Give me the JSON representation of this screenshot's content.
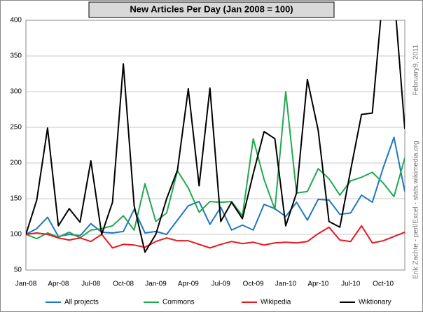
{
  "chart_data": {
    "type": "line",
    "title": "New Articles Per Day  (Jan 2008 = 100)",
    "annotations": [
      "February9, 2011",
      "Erik Zachte  -  perl/Excel  -  stats.wikimedia.org"
    ],
    "categories": [
      "Jan-08",
      null,
      null,
      "Apr-08",
      null,
      null,
      "Jul-08",
      null,
      null,
      "Oct-08",
      null,
      null,
      "Jan-09",
      null,
      null,
      "Apr-09",
      null,
      null,
      "Jul-09",
      null,
      null,
      "Oct-09",
      null,
      null,
      "Jan-10",
      null,
      null,
      "Apr-10",
      null,
      null,
      "Jul-10",
      null,
      null,
      "Oct-10",
      null,
      null
    ],
    "ylim": [
      50,
      400
    ],
    "yticks": [
      50,
      100,
      150,
      200,
      250,
      300,
      350,
      400
    ],
    "grid": true,
    "legend": "bottom",
    "series": [
      {
        "name": "All projects",
        "color": "#1f77c0",
        "values": [
          100,
          108,
          124,
          97,
          100,
          98,
          115,
          103,
          102,
          104,
          135,
          102,
          104,
          100,
          120,
          140,
          146,
          114,
          138,
          106,
          113,
          106,
          142,
          136,
          125,
          145,
          120,
          149,
          148,
          128,
          130,
          155,
          145,
          193,
          236,
          160
        ]
      },
      {
        "name": "Commons",
        "color": "#1faa50",
        "values": [
          100,
          94,
          102,
          96,
          103,
          95,
          106,
          108,
          112,
          126,
          106,
          171,
          118,
          130,
          189,
          165,
          131,
          146,
          145,
          146,
          126,
          234,
          177,
          135,
          300,
          158,
          160,
          192,
          178,
          155,
          175,
          180,
          187,
          172,
          153,
          207
        ]
      },
      {
        "name": "Wikipedia",
        "color": "#e8191e",
        "values": [
          100,
          102,
          100,
          95,
          92,
          95,
          90,
          100,
          81,
          86,
          85,
          82,
          90,
          95,
          91,
          91,
          86,
          81,
          86,
          90,
          87,
          89,
          85,
          88,
          89,
          88,
          90,
          101,
          110,
          92,
          90,
          112,
          88,
          91,
          97,
          103
        ]
      },
      {
        "name": "Wiktionary",
        "color": "#000000",
        "values": [
          100,
          148,
          249,
          112,
          136,
          117,
          203,
          100,
          145,
          339,
          140,
          75,
          100,
          150,
          190,
          304,
          168,
          305,
          118,
          145,
          122,
          185,
          244,
          234,
          112,
          158,
          317,
          246,
          118,
          110,
          190,
          268,
          270,
          440,
          440,
          248
        ]
      }
    ]
  }
}
